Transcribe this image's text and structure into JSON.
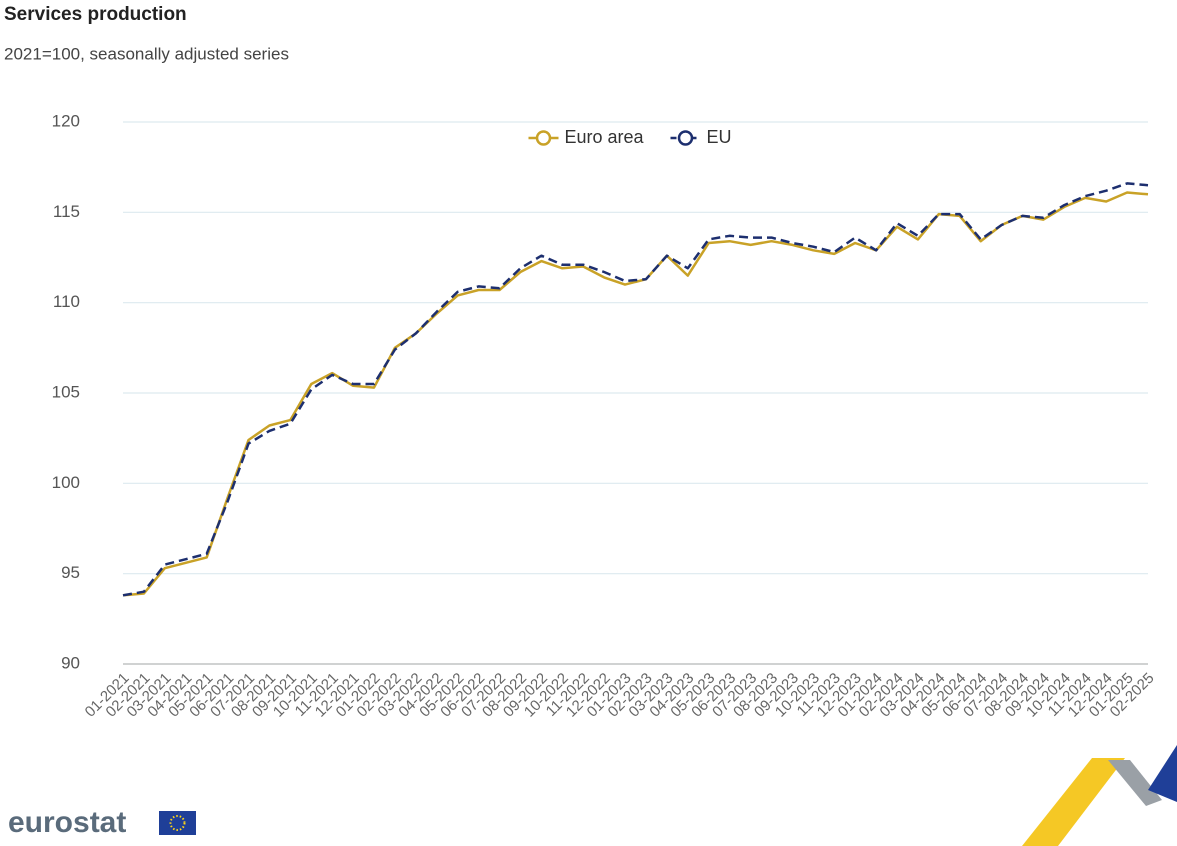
{
  "chart_data": {
    "type": "line",
    "title": "Services production",
    "subtitle": "2021=100, seasonally adjusted series",
    "logo": "eurostat",
    "categories": [
      "01-2021",
      "02-2021",
      "03-2021",
      "04-2021",
      "05-2021",
      "06-2021",
      "07-2021",
      "08-2021",
      "09-2021",
      "10-2021",
      "11-2021",
      "12-2021",
      "01-2022",
      "02-2022",
      "03-2022",
      "04-2022",
      "05-2022",
      "06-2022",
      "07-2022",
      "08-2022",
      "09-2022",
      "10-2022",
      "11-2022",
      "12-2022",
      "01-2023",
      "02-2023",
      "03-2023",
      "04-2023",
      "05-2023",
      "06-2023",
      "07-2023",
      "08-2023",
      "09-2023",
      "10-2023",
      "11-2023",
      "12-2023",
      "01-2024",
      "02-2024",
      "03-2024",
      "04-2024",
      "05-2024",
      "06-2024",
      "07-2024",
      "08-2024",
      "09-2024",
      "10-2024",
      "11-2024",
      "12-2024",
      "01-2025",
      "02-2025"
    ],
    "series": [
      {
        "name": "Euro area",
        "color": "#c9a227",
        "dashed": false,
        "values": [
          93.8,
          93.9,
          95.3,
          95.6,
          95.9,
          99.2,
          102.4,
          103.2,
          103.5,
          105.5,
          106.1,
          105.4,
          105.3,
          107.5,
          108.3,
          109.4,
          110.4,
          110.7,
          110.7,
          111.7,
          112.3,
          111.9,
          112.0,
          111.4,
          111.0,
          111.3,
          112.6,
          111.5,
          113.3,
          113.4,
          113.2,
          113.4,
          113.2,
          112.9,
          112.7,
          113.3,
          112.9,
          114.2,
          113.5,
          114.9,
          114.8,
          113.4,
          114.3,
          114.8,
          114.6,
          115.3,
          115.8,
          115.6,
          116.1,
          116.0
        ]
      },
      {
        "name": "EU",
        "color": "#1d2f6f",
        "dashed": true,
        "values": [
          93.8,
          94.0,
          95.5,
          95.8,
          96.1,
          99.0,
          102.2,
          102.9,
          103.3,
          105.2,
          106.0,
          105.5,
          105.5,
          107.4,
          108.3,
          109.5,
          110.6,
          110.9,
          110.8,
          111.9,
          112.6,
          112.1,
          112.1,
          111.7,
          111.2,
          111.3,
          112.6,
          111.9,
          113.5,
          113.7,
          113.6,
          113.6,
          113.3,
          113.1,
          112.8,
          113.6,
          112.9,
          114.4,
          113.7,
          114.9,
          114.9,
          113.5,
          114.3,
          114.8,
          114.7,
          115.4,
          115.9,
          116.2,
          116.6,
          116.5
        ]
      }
    ],
    "ylim": [
      90,
      120
    ],
    "yticks": [
      90,
      95,
      100,
      105,
      110,
      115,
      120
    ],
    "grid": true,
    "legend": "top"
  }
}
